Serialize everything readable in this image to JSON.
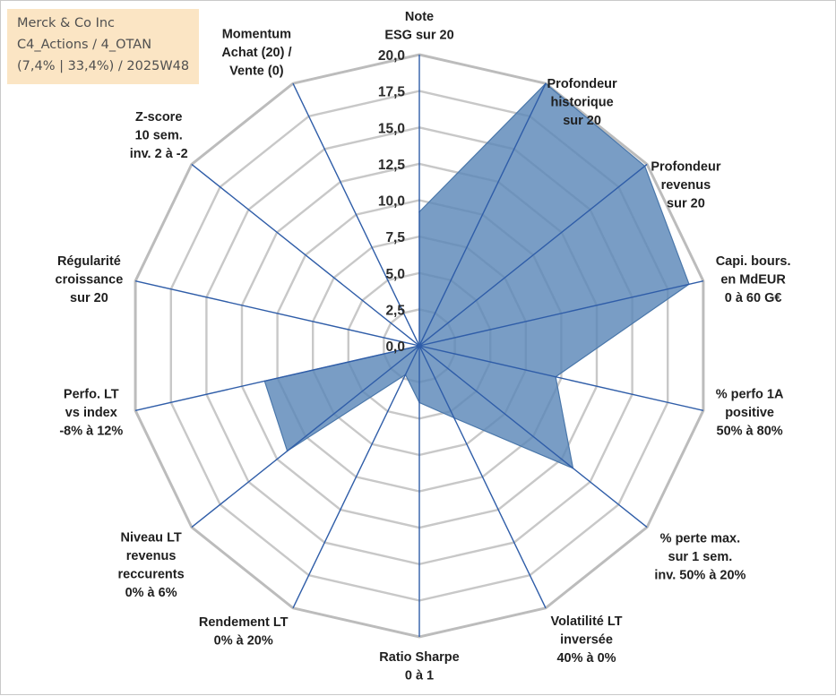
{
  "info_box": {
    "line1": "Merck & Co Inc",
    "line2": "C4_Actions / 4_OTAN",
    "line3": "(7,4% | 33,4%) / 2025W48"
  },
  "chart_data": {
    "type": "radar",
    "title": "",
    "range": [
      0,
      20
    ],
    "ticks": [
      "0,0",
      "2,5",
      "5,0",
      "7,5",
      "10,0",
      "12,5",
      "15,0",
      "17,5",
      "20,0"
    ],
    "axes": [
      [
        "Note",
        "ESG sur 20"
      ],
      [
        "Profondeur",
        "historique",
        "sur 20"
      ],
      [
        "Profondeur",
        "revenus",
        "sur 20"
      ],
      [
        "Capi. bours.",
        "en MdEUR",
        "0 à 60 G€"
      ],
      [
        "% perfo 1A",
        "positive",
        "50% à 80%"
      ],
      [
        "% perte max.",
        "sur 1 sem.",
        "inv. 50% à 20%"
      ],
      [
        "Volatilité LT",
        "inversée",
        "40% à 0%"
      ],
      [
        "Ratio Sharpe",
        "0 à 1"
      ],
      [
        "Rendement LT",
        "0% à 20%"
      ],
      [
        "Niveau LT",
        "revenus",
        "reccurents",
        "0% à 6%"
      ],
      [
        "Perfo. LT",
        "vs index",
        "-8% à 12%"
      ],
      [
        "Régularité",
        "croissance",
        "sur 20"
      ],
      [
        "Z-score",
        "10 sem.",
        "inv. 2 à -2"
      ],
      [
        "Momentum",
        "Achat (20) /",
        "Vente (0)"
      ]
    ],
    "series": [
      {
        "name": "Merck & Co Inc",
        "values": [
          9.2,
          20.0,
          19.8,
          19.0,
          9.6,
          13.5,
          5.5,
          3.9,
          2.2,
          11.6,
          10.9,
          0.0,
          0.0,
          0.0
        ],
        "color": "#5b87b8"
      }
    ],
    "colors": {
      "fill": "#5b87b8",
      "spoke": "#2f5da8",
      "grid": "#c8c8c8",
      "outer_grid": "#bcbcbc"
    }
  }
}
